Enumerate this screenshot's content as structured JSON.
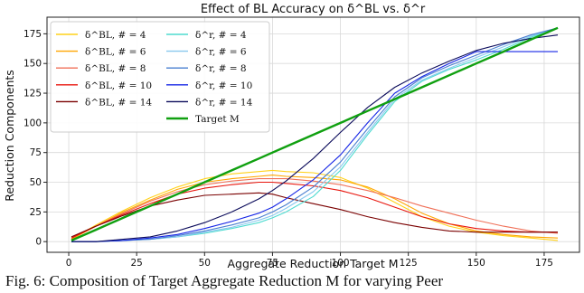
{
  "chart_data": {
    "type": "line",
    "title": "Effect of BL Accuracy on δ^BL vs. δ^r",
    "xlabel": "Aggregate Reduction Target M",
    "ylabel": "Reduction Components",
    "xlim": [
      -8,
      188
    ],
    "ylim": [
      -9,
      189
    ],
    "xticks": [
      0,
      25,
      50,
      75,
      100,
      125,
      150,
      175
    ],
    "yticks": [
      0,
      25,
      50,
      75,
      100,
      125,
      150,
      175
    ],
    "grid": true,
    "legend_position": "top-left",
    "x": [
      1,
      10,
      20,
      30,
      40,
      50,
      60,
      70,
      75,
      80,
      90,
      100,
      110,
      120,
      130,
      140,
      150,
      160,
      170,
      180
    ],
    "series": [
      {
        "name": "δ^BL, # = 4",
        "group": "bl",
        "color": "#ffd21a",
        "values": [
          2,
          14,
          26,
          37,
          46,
          53,
          57,
          59,
          60,
          59,
          58,
          54,
          45,
          33,
          21,
          13,
          8,
          5,
          3,
          1
        ]
      },
      {
        "name": "δ^BL, # = 6",
        "group": "bl",
        "color": "#ffa500",
        "values": [
          2,
          13,
          25,
          35,
          44,
          50,
          53,
          55,
          56,
          55,
          54,
          52,
          46,
          36,
          24,
          15,
          9,
          6,
          4,
          3
        ]
      },
      {
        "name": "δ^BL, # = 8",
        "group": "bl",
        "color": "#f07058",
        "values": [
          3,
          13,
          24,
          34,
          42,
          48,
          51,
          53,
          53,
          53,
          51,
          48,
          43,
          37,
          30,
          24,
          18,
          13,
          9,
          7
        ]
      },
      {
        "name": "δ^BL, # = 10",
        "group": "bl",
        "color": "#e8150c",
        "values": [
          3,
          13,
          23,
          32,
          40,
          45,
          48,
          50,
          50,
          49,
          47,
          43,
          37,
          29,
          21,
          15,
          11,
          9,
          8,
          8
        ]
      },
      {
        "name": "δ^BL, # = 14",
        "group": "bl",
        "color": "#7a0000",
        "values": [
          4,
          13,
          22,
          30,
          35,
          39,
          40,
          41,
          40,
          37,
          32,
          27,
          21,
          16,
          12,
          9,
          8,
          8,
          8,
          8
        ]
      },
      {
        "name": "δ^r, # = 4",
        "group": "r",
        "color": "#4fdbd0",
        "values": [
          0,
          0,
          1,
          2,
          4,
          7,
          11,
          16,
          20,
          25,
          38,
          60,
          90,
          118,
          135,
          145,
          153,
          162,
          172,
          180
        ]
      },
      {
        "name": "δ^r, # = 6",
        "group": "r",
        "color": "#88c8ee",
        "values": [
          0,
          0,
          1,
          2,
          4,
          8,
          12,
          18,
          22,
          28,
          42,
          63,
          92,
          120,
          136,
          146,
          155,
          164,
          173,
          180
        ]
      },
      {
        "name": "δ^r, # = 8",
        "group": "r",
        "color": "#4a7fd0",
        "values": [
          0,
          0,
          1,
          2,
          5,
          9,
          14,
          20,
          25,
          31,
          46,
          67,
          95,
          122,
          138,
          148,
          157,
          166,
          174,
          180
        ]
      },
      {
        "name": "δ^r, # = 10",
        "group": "r",
        "color": "#1626e6",
        "values": [
          0,
          0,
          1,
          3,
          6,
          11,
          17,
          24,
          29,
          36,
          52,
          73,
          100,
          125,
          139,
          150,
          160,
          160,
          160,
          160
        ]
      },
      {
        "name": "δ^r, # = 14",
        "group": "r",
        "color": "#0a0a5a",
        "values": [
          0,
          0,
          2,
          4,
          9,
          16,
          25,
          36,
          43,
          51,
          70,
          92,
          113,
          130,
          142,
          152,
          161,
          167,
          171,
          174
        ]
      },
      {
        "name": "Target M",
        "group": "target",
        "color": "#10a010",
        "values": [
          1,
          10,
          20,
          30,
          40,
          50,
          60,
          70,
          75,
          80,
          90,
          100,
          110,
          120,
          130,
          140,
          150,
          160,
          170,
          180
        ]
      }
    ]
  },
  "caption": "Fig. 6: Composition of Target Aggregate Reduction M for varying Peer"
}
